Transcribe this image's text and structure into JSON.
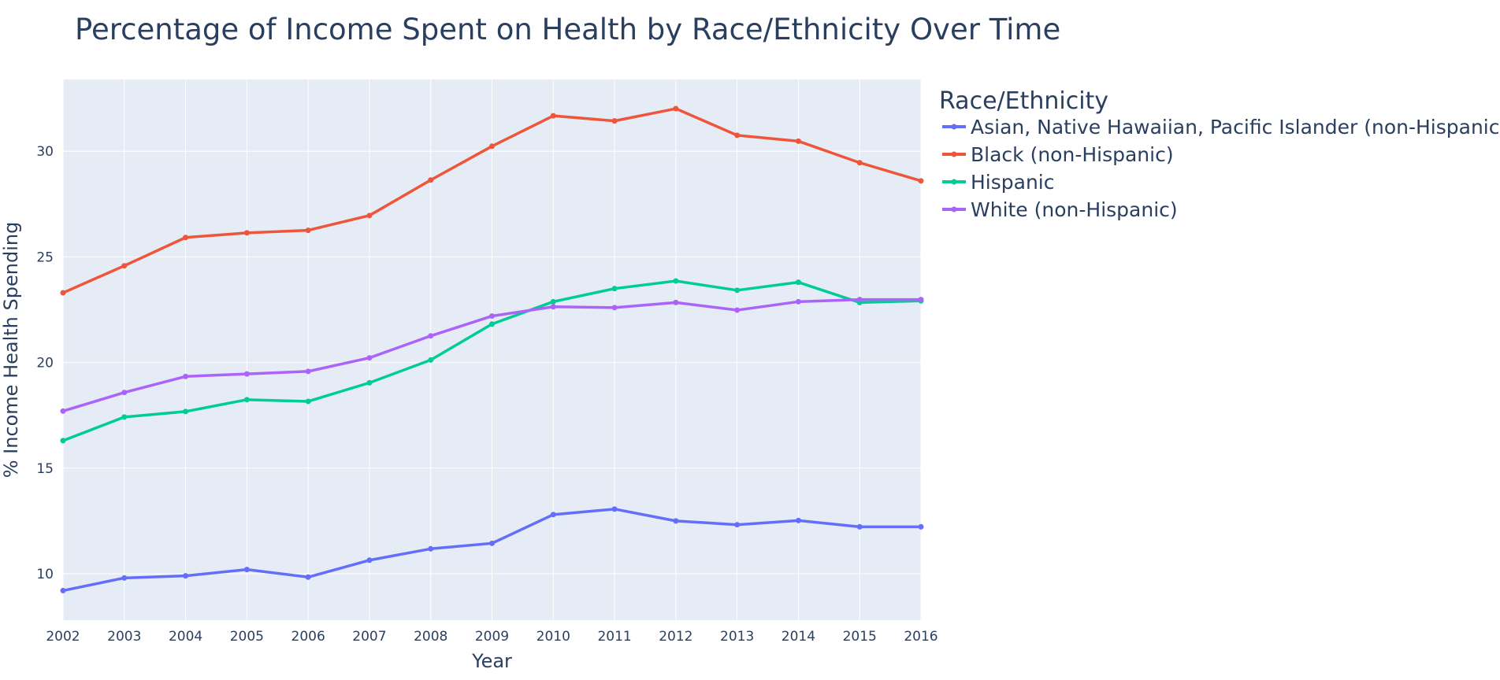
{
  "chart_data": {
    "type": "line",
    "title": "Percentage of Income Spent on Health by Race/Ethnicity Over Time",
    "xlabel": "Year",
    "ylabel": "% Income Health Spending",
    "x": [
      2002,
      2003,
      2004,
      2005,
      2006,
      2007,
      2008,
      2009,
      2010,
      2011,
      2012,
      2013,
      2014,
      2015,
      2016
    ],
    "x_ticks": [
      "2002",
      "2003",
      "2004",
      "2005",
      "2006",
      "2007",
      "2008",
      "2009",
      "2010",
      "2011",
      "2012",
      "2013",
      "2014",
      "2015",
      "2016"
    ],
    "y_ticks": [
      10,
      15,
      20,
      25,
      30
    ],
    "xlim": [
      2002,
      2016
    ],
    "ylim": [
      7.8,
      33.4
    ],
    "grid": true,
    "plot_background": "#E5ECF6",
    "legend_title": "Race/Ethnicity",
    "legend_position": "right",
    "series": [
      {
        "name": "Asian, Native Hawaiian, Pacific Islander (non-Hispanic)",
        "color": "#636EFA",
        "values": [
          9.2,
          9.8,
          9.9,
          10.2,
          9.84,
          10.64,
          11.18,
          11.44,
          12.8,
          13.06,
          12.5,
          12.32,
          12.52,
          12.22,
          12.22
        ]
      },
      {
        "name": "Black (non-Hispanic)",
        "color": "#EF553B",
        "values": [
          23.3,
          24.58,
          25.92,
          26.14,
          26.26,
          26.96,
          28.64,
          30.24,
          31.68,
          31.44,
          32.02,
          30.76,
          30.48,
          29.46,
          28.6
        ]
      },
      {
        "name": "Hispanic",
        "color": "#00CC96",
        "values": [
          16.3,
          17.42,
          17.68,
          18.24,
          18.16,
          19.04,
          20.12,
          21.82,
          22.88,
          23.5,
          23.86,
          23.42,
          23.8,
          22.84,
          22.92
        ]
      },
      {
        "name": "White (non-Hispanic)",
        "color": "#AB63FA",
        "values": [
          17.7,
          18.58,
          19.34,
          19.46,
          19.58,
          20.22,
          21.26,
          22.2,
          22.64,
          22.6,
          22.84,
          22.48,
          22.88,
          22.98,
          22.98
        ]
      }
    ]
  }
}
